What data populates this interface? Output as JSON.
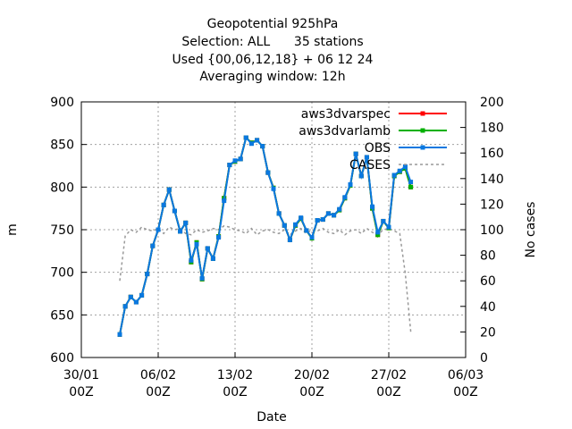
{
  "chart_data": {
    "type": "line",
    "title_lines": [
      "Geopotential 925hPa",
      "Selection: ALL      35 stations",
      "Used {00,06,12,18} + 06 12 24",
      "Averaging window: 12h"
    ],
    "xlabel": "Date",
    "ylabel": "m",
    "y2label": "No cases",
    "x_range": [
      "2023-01-30T00:00",
      "2023-03-06T00:00"
    ],
    "xticks": [
      {
        "date": "2023-01-30T00:00",
        "label1": "30/01",
        "label2": "00Z"
      },
      {
        "date": "2023-02-06T00:00",
        "label1": "06/02",
        "label2": "00Z"
      },
      {
        "date": "2023-02-13T00:00",
        "label1": "13/02",
        "label2": "00Z"
      },
      {
        "date": "2023-02-20T00:00",
        "label1": "20/02",
        "label2": "00Z"
      },
      {
        "date": "2023-02-27T00:00",
        "label1": "27/02",
        "label2": "00Z"
      },
      {
        "date": "2023-03-06T00:00",
        "label1": "06/03",
        "label2": "00Z"
      }
    ],
    "ylim": [
      600,
      900
    ],
    "yticks": [
      600,
      650,
      700,
      750,
      800,
      850,
      900
    ],
    "y2lim": [
      0,
      200
    ],
    "y2ticks": [
      0,
      20,
      40,
      60,
      80,
      100,
      120,
      140,
      160,
      180,
      200
    ],
    "grid": true,
    "legend_position": "top-right",
    "x": [
      "2023-02-02T12:00",
      "2023-02-03T00:00",
      "2023-02-03T12:00",
      "2023-02-04T00:00",
      "2023-02-04T12:00",
      "2023-02-05T00:00",
      "2023-02-05T12:00",
      "2023-02-06T00:00",
      "2023-02-06T12:00",
      "2023-02-07T00:00",
      "2023-02-07T12:00",
      "2023-02-08T00:00",
      "2023-02-08T12:00",
      "2023-02-09T00:00",
      "2023-02-09T12:00",
      "2023-02-10T00:00",
      "2023-02-10T12:00",
      "2023-02-11T00:00",
      "2023-02-11T12:00",
      "2023-02-12T00:00",
      "2023-02-12T12:00",
      "2023-02-13T00:00",
      "2023-02-13T12:00",
      "2023-02-14T00:00",
      "2023-02-14T12:00",
      "2023-02-15T00:00",
      "2023-02-15T12:00",
      "2023-02-16T00:00",
      "2023-02-16T12:00",
      "2023-02-17T00:00",
      "2023-02-17T12:00",
      "2023-02-18T00:00",
      "2023-02-18T12:00",
      "2023-02-19T00:00",
      "2023-02-19T12:00",
      "2023-02-20T00:00",
      "2023-02-20T12:00",
      "2023-02-21T00:00",
      "2023-02-21T12:00",
      "2023-02-22T00:00",
      "2023-02-22T12:00",
      "2023-02-23T00:00",
      "2023-02-23T12:00",
      "2023-02-24T00:00",
      "2023-02-24T12:00",
      "2023-02-25T00:00",
      "2023-02-25T12:00",
      "2023-02-26T00:00",
      "2023-02-26T12:00",
      "2023-02-27T00:00",
      "2023-02-27T12:00",
      "2023-02-28T00:00",
      "2023-02-28T12:00",
      "2023-03-01T00:00"
    ],
    "series": [
      {
        "name": "aws3dvarspec",
        "color": "#ff0000",
        "axis": "left",
        "values": [
          627,
          660,
          671,
          665,
          673,
          698,
          731,
          750,
          779,
          797,
          772,
          748,
          758,
          712,
          735,
          692,
          728,
          716,
          742,
          787,
          826,
          830,
          833,
          858,
          852,
          855,
          848,
          817,
          799,
          769,
          755,
          738,
          755,
          763,
          749,
          740,
          761,
          762,
          769,
          767,
          773,
          787,
          802,
          839,
          813,
          835,
          775,
          744,
          760,
          752,
          813,
          818,
          822,
          800
        ]
      },
      {
        "name": "aws3dvarlamb",
        "color": "#00b000",
        "axis": "left",
        "values": [
          627,
          660,
          671,
          665,
          673,
          698,
          731,
          750,
          779,
          797,
          772,
          748,
          758,
          712,
          735,
          692,
          728,
          716,
          742,
          787,
          826,
          830,
          833,
          858,
          852,
          855,
          848,
          817,
          799,
          769,
          755,
          738,
          755,
          763,
          749,
          740,
          761,
          762,
          769,
          767,
          773,
          787,
          802,
          839,
          813,
          835,
          775,
          744,
          760,
          752,
          813,
          818,
          822,
          800
        ]
      },
      {
        "name": "OBS",
        "color": "#0a78e0",
        "axis": "left",
        "values": [
          627,
          660,
          671,
          665,
          673,
          698,
          731,
          750,
          779,
          797,
          772,
          748,
          758,
          714,
          733,
          693,
          728,
          716,
          741,
          784,
          826,
          831,
          833,
          858,
          851,
          855,
          848,
          817,
          798,
          769,
          755,
          738,
          756,
          764,
          749,
          741,
          761,
          762,
          769,
          767,
          774,
          788,
          803,
          839,
          813,
          835,
          777,
          747,
          760,
          753,
          814,
          819,
          824,
          806
        ]
      },
      {
        "name": "CASES",
        "color": "#999999",
        "axis": "right",
        "style": "dashed",
        "values": [
          60,
          95,
          100,
          98,
          102,
          100,
          99,
          101,
          97,
          102,
          100,
          101,
          97,
          96,
          100,
          98,
          99,
          101,
          100,
          103,
          102,
          100,
          99,
          97,
          101,
          96,
          99,
          100,
          98,
          97,
          100,
          96,
          99,
          101,
          97,
          100,
          99,
          101,
          98,
          97,
          100,
          96,
          99,
          100,
          97,
          101,
          98,
          96,
          100,
          101,
          99,
          97,
          66,
          20
        ]
      }
    ]
  }
}
